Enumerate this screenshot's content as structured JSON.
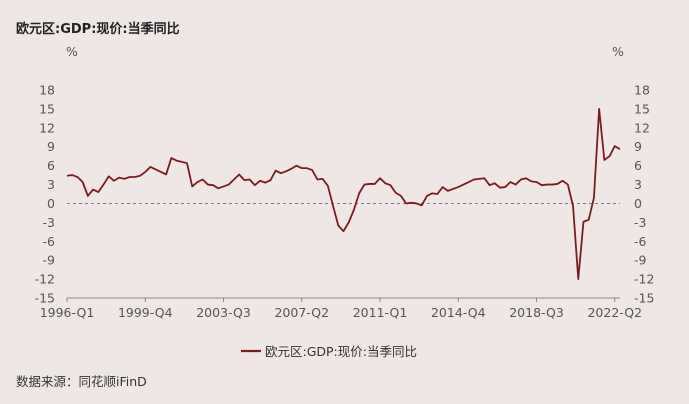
{
  "chart_data": {
    "type": "line",
    "title": "欧元区:GDP:现价:当季同比",
    "y_unit_left": "%",
    "y_unit_right": "%",
    "ylim": [
      -15,
      18
    ],
    "yticks": [
      18,
      15,
      12,
      9,
      6,
      3,
      0,
      -3,
      -6,
      -9,
      -12,
      -15
    ],
    "x_tick_labels": [
      "1996-Q1",
      "1999-Q4",
      "2003-Q3",
      "2007-Q2",
      "2011-Q1",
      "2014-Q4",
      "2018-Q3",
      "2022-Q2"
    ],
    "grid": false,
    "zero_line": "dashed",
    "legend_position": "bottom-center",
    "line_color": "#7b1c1c",
    "series": [
      {
        "name": "欧元区:GDP:现价:当季同比",
        "start": "1996-Q1",
        "values": [
          4.4,
          4.5,
          4.2,
          3.4,
          1.2,
          2.2,
          1.8,
          3.0,
          4.3,
          3.6,
          4.1,
          3.9,
          4.2,
          4.2,
          4.4,
          5.0,
          5.8,
          5.4,
          5.0,
          4.6,
          7.2,
          6.8,
          6.6,
          6.4,
          2.7,
          3.4,
          3.8,
          3.0,
          2.9,
          2.4,
          2.7,
          3.0,
          3.8,
          4.6,
          3.7,
          3.8,
          2.9,
          3.6,
          3.3,
          3.7,
          5.2,
          4.8,
          5.1,
          5.5,
          6.0,
          5.6,
          5.6,
          5.3,
          3.8,
          3.9,
          2.8,
          -0.4,
          -3.5,
          -4.4,
          -3.0,
          -1.0,
          1.6,
          3.0,
          3.1,
          3.1,
          4.0,
          3.2,
          2.9,
          1.7,
          1.2,
          0.0,
          0.1,
          0.0,
          -0.3,
          1.2,
          1.6,
          1.5,
          2.6,
          2.0,
          2.3,
          2.6,
          3.0,
          3.4,
          3.8,
          3.9,
          4.0,
          2.9,
          3.2,
          2.5,
          2.6,
          3.4,
          3.0,
          3.8,
          4.0,
          3.5,
          3.4,
          2.9,
          3.0,
          3.0,
          3.1,
          3.6,
          3.0,
          -0.4,
          -12.0,
          -2.9,
          -2.6,
          0.9,
          15.0,
          6.9,
          7.5,
          9.1,
          8.6
        ]
      }
    ]
  },
  "source_label": "数据来源：同花顺iFinD"
}
